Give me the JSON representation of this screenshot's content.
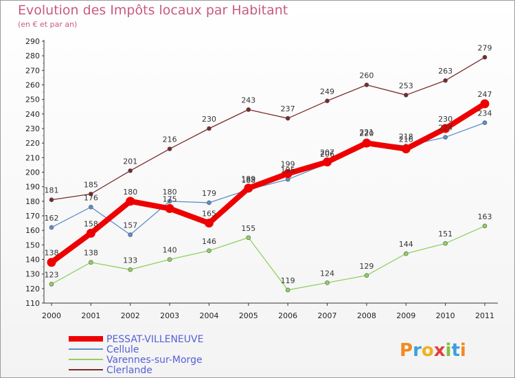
{
  "chart_data": {
    "type": "line",
    "title": "Evolution des Impôts locaux par Habitant",
    "subtitle": "(en € et par an)",
    "x": [
      "2000",
      "2001",
      "2002",
      "2003",
      "2004",
      "2005",
      "2006",
      "2007",
      "2008",
      "2009",
      "2010",
      "2011"
    ],
    "ylim": [
      110,
      290
    ],
    "yticks": [
      110,
      120,
      130,
      140,
      150,
      160,
      170,
      180,
      190,
      200,
      210,
      220,
      230,
      240,
      250,
      260,
      270,
      280,
      290
    ],
    "grid": false,
    "legend_position": "bottom-left",
    "series": [
      {
        "name": "PESSAT-VILLENEUVE",
        "color": "#ee0000",
        "values": [
          138,
          158,
          180,
          175,
          165,
          189,
          199,
          207,
          220,
          216,
          230,
          247
        ]
      },
      {
        "name": "Cellule",
        "color": "#5a8fc8",
        "values": [
          162,
          176,
          157,
          180,
          179,
          188,
          195,
          206,
          221,
          218,
          224,
          234
        ]
      },
      {
        "name": "Varennes-sur-Morge",
        "color": "#90d060",
        "values": [
          123,
          138,
          133,
          140,
          146,
          155,
          119,
          124,
          129,
          144,
          151,
          163
        ]
      },
      {
        "name": "Clerlande",
        "color": "#7a2a2a",
        "values": [
          181,
          185,
          201,
          216,
          230,
          243,
          237,
          249,
          260,
          253,
          263,
          279
        ]
      }
    ]
  },
  "logo": {
    "letters": [
      "P",
      "r",
      "o",
      "x",
      "i",
      "t",
      "i"
    ],
    "colors": [
      "#f08a20",
      "#3aa0e0",
      "#f0b020",
      "#e04040",
      "#80c040",
      "#3aa0e0",
      "#f08a20"
    ]
  }
}
